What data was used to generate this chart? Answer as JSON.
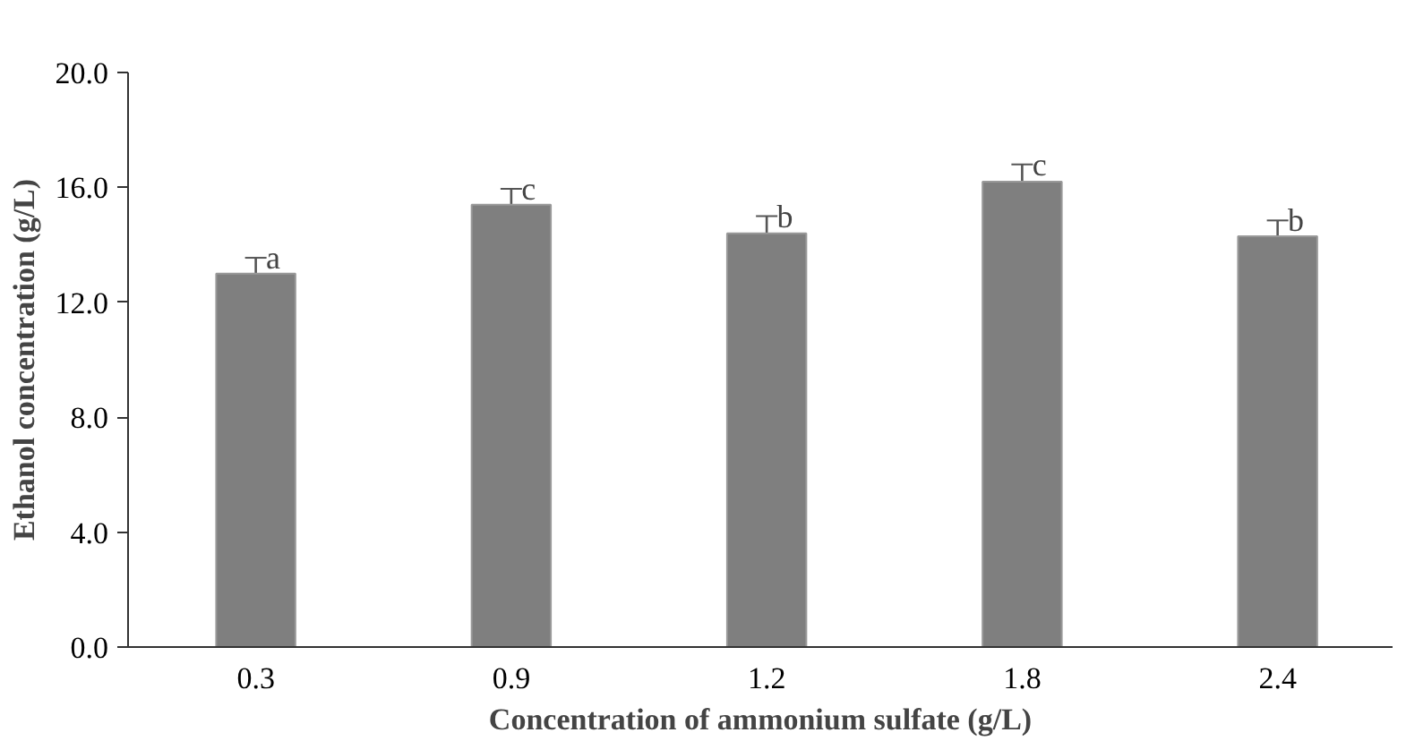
{
  "chart_data": {
    "type": "bar",
    "xlabel": "Concentration of ammonium sulfate (g/L)",
    "ylabel": "Ethanol concentration (g/L)",
    "categories": [
      "0.3",
      "0.9",
      "1.2",
      "1.8",
      "2.4"
    ],
    "values": [
      13.0,
      15.4,
      14.4,
      16.2,
      14.3
    ],
    "errors": [
      0.55,
      0.55,
      0.6,
      0.6,
      0.55
    ],
    "color": "#7f7f7f",
    "ylim": [
      0,
      20
    ],
    "yticks": [
      {
        "value": 0,
        "label": "0.0"
      },
      {
        "value": 4,
        "label": "4.0"
      },
      {
        "value": 8,
        "label": "8.0"
      },
      {
        "value": 12,
        "label": "12.0"
      },
      {
        "value": 16,
        "label": "16.0"
      },
      {
        "value": 20,
        "label": "20.0"
      }
    ],
    "grid": false,
    "annotations": [
      {
        "text": "a",
        "x": "0.3",
        "y": 13.55
      },
      {
        "text": "c",
        "x": "0.9",
        "y": 15.95
      },
      {
        "text": "b",
        "x": "1.2",
        "y": 15.0
      },
      {
        "text": "c",
        "x": "1.8",
        "y": 16.8
      },
      {
        "text": "b",
        "x": "2.4",
        "y": 14.85
      }
    ]
  }
}
